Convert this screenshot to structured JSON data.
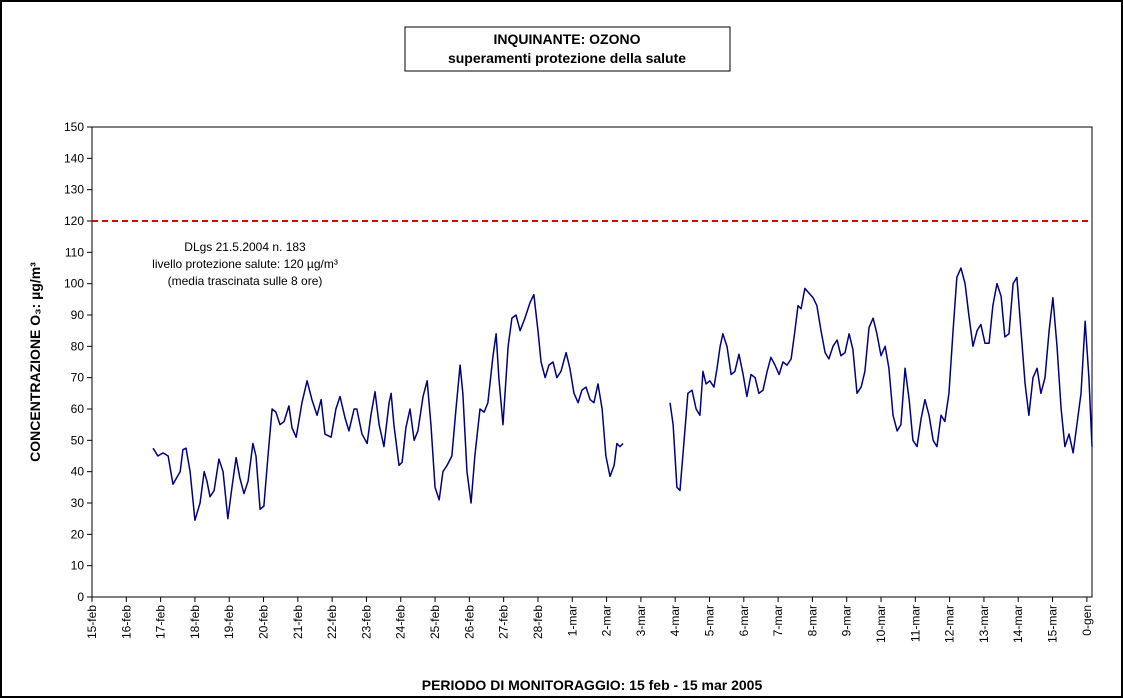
{
  "chart_data": {
    "type": "line",
    "title": "INQUINANTE: OZONO",
    "subtitle": "superamenti protezione della salute",
    "xlabel": "PERIODO DI MONITORAGGIO: 15 feb - 15 mar 2005",
    "ylabel": "CONCENTRAZIONE O₃: µg/m³",
    "color": "#000080",
    "threshold": {
      "value": 120,
      "color": "#e00000",
      "annotation": [
        "DLgs 21.5.2004 n. 183",
        "livello protezione salute: 120 µg/m³",
        "(media trascinata sulle 8 ore)"
      ]
    },
    "xlim": [
      0,
      29.15
    ],
    "xticks": [
      {
        "value": 0,
        "label": "15-feb"
      },
      {
        "value": 1,
        "label": "16-feb"
      },
      {
        "value": 2,
        "label": "17-feb"
      },
      {
        "value": 3,
        "label": "18-feb"
      },
      {
        "value": 4,
        "label": "19-feb"
      },
      {
        "value": 5,
        "label": "20-feb"
      },
      {
        "value": 6,
        "label": "21-feb"
      },
      {
        "value": 7,
        "label": "22-feb"
      },
      {
        "value": 8,
        "label": "23-feb"
      },
      {
        "value": 9,
        "label": "24-feb"
      },
      {
        "value": 10,
        "label": "25-feb"
      },
      {
        "value": 11,
        "label": "26-feb"
      },
      {
        "value": 12,
        "label": "27-feb"
      },
      {
        "value": 13,
        "label": "28-feb"
      },
      {
        "value": 14,
        "label": "1-mar"
      },
      {
        "value": 15,
        "label": "2-mar"
      },
      {
        "value": 16,
        "label": "3-mar"
      },
      {
        "value": 17,
        "label": "4-mar"
      },
      {
        "value": 18,
        "label": "5-mar"
      },
      {
        "value": 19,
        "label": "6-mar"
      },
      {
        "value": 20,
        "label": "7-mar"
      },
      {
        "value": 21,
        "label": "8-mar"
      },
      {
        "value": 22,
        "label": "9-mar"
      },
      {
        "value": 23,
        "label": "10-mar"
      },
      {
        "value": 24,
        "label": "11-mar"
      },
      {
        "value": 25,
        "label": "12-mar"
      },
      {
        "value": 26,
        "label": "13-mar"
      },
      {
        "value": 27,
        "label": "14-mar"
      },
      {
        "value": 28,
        "label": "15-mar"
      },
      {
        "value": 29,
        "label": "0-gen"
      }
    ],
    "ylim": [
      0,
      150
    ],
    "yticks": [
      0,
      10,
      20,
      30,
      40,
      50,
      60,
      70,
      80,
      90,
      100,
      110,
      120,
      130,
      140,
      150
    ],
    "x": [
      1.78,
      1.92,
      2.07,
      2.22,
      2.36,
      2.57,
      2.65,
      2.74,
      2.86,
      3.0,
      3.15,
      3.27,
      3.35,
      3.44,
      3.56,
      3.7,
      3.82,
      3.96,
      4.08,
      4.2,
      4.31,
      4.43,
      4.55,
      4.69,
      4.78,
      4.9,
      5.01,
      5.13,
      5.25,
      5.36,
      5.48,
      5.6,
      5.74,
      5.83,
      5.95,
      6.12,
      6.27,
      6.41,
      6.56,
      6.68,
      6.79,
      6.97,
      7.11,
      7.23,
      7.38,
      7.49,
      7.64,
      7.72,
      7.87,
      8.02,
      8.13,
      8.25,
      8.37,
      8.51,
      8.66,
      8.72,
      8.8,
      8.95,
      9.04,
      9.15,
      9.27,
      9.39,
      9.5,
      9.65,
      9.77,
      9.88,
      10.0,
      10.12,
      10.23,
      10.35,
      10.49,
      10.61,
      10.73,
      10.81,
      10.93,
      11.05,
      11.16,
      11.31,
      11.43,
      11.54,
      11.69,
      11.78,
      11.86,
      11.98,
      12.13,
      12.24,
      12.36,
      12.48,
      12.62,
      12.77,
      12.88,
      13.0,
      13.09,
      13.21,
      13.32,
      13.44,
      13.55,
      13.67,
      13.82,
      13.93,
      14.05,
      14.17,
      14.28,
      14.4,
      14.52,
      14.63,
      14.75,
      14.87,
      14.98,
      15.1,
      15.22,
      15.3,
      15.39,
      15.48,
      16.2,
      16.85,
      16.94,
      17.05,
      17.14,
      17.26,
      17.37,
      17.49,
      17.61,
      17.72,
      17.81,
      17.9,
      18.01,
      18.13,
      18.22,
      18.31,
      18.39,
      18.51,
      18.63,
      18.74,
      18.86,
      18.98,
      19.09,
      19.21,
      19.33,
      19.44,
      19.56,
      19.68,
      19.79,
      19.91,
      20.03,
      20.14,
      20.26,
      20.38,
      20.49,
      20.58,
      20.67,
      20.78,
      20.9,
      21.02,
      21.13,
      21.25,
      21.37,
      21.48,
      21.6,
      21.72,
      21.83,
      21.95,
      22.07,
      22.18,
      22.3,
      22.42,
      22.53,
      22.65,
      22.77,
      22.88,
      23.0,
      23.12,
      23.23,
      23.35,
      23.47,
      23.58,
      23.7,
      23.82,
      23.93,
      24.05,
      24.17,
      24.28,
      24.4,
      24.52,
      24.63,
      24.75,
      24.86,
      24.98,
      25.1,
      25.21,
      25.33,
      25.45,
      25.56,
      25.68,
      25.8,
      25.91,
      26.03,
      26.15,
      26.26,
      26.38,
      26.5,
      26.61,
      26.73,
      26.85,
      26.96,
      27.08,
      27.2,
      27.31,
      27.43,
      27.55,
      27.66,
      27.78,
      27.9,
      28.01,
      28.13,
      28.25,
      28.36,
      28.48,
      28.6,
      28.71,
      28.83,
      28.95,
      29.06,
      29.15
    ],
    "values": [
      47.5,
      45,
      46,
      45,
      36,
      40,
      47,
      47.5,
      40,
      24.5,
      30,
      40,
      37,
      32,
      34,
      44,
      40,
      25,
      35,
      44.5,
      38,
      33,
      37,
      49,
      45,
      28,
      29,
      45,
      60,
      59,
      55,
      56,
      61,
      54,
      51,
      62,
      69,
      63,
      58,
      63,
      52,
      51,
      60,
      64,
      57,
      53,
      60,
      60,
      52,
      49,
      58,
      65.5,
      55,
      48,
      62,
      65,
      55,
      42,
      43,
      54,
      60,
      50,
      53,
      64,
      69,
      55,
      35,
      31,
      40,
      42,
      45,
      60,
      74,
      65,
      40,
      30,
      45,
      60,
      59,
      62,
      77,
      84,
      70,
      55,
      80,
      89,
      90,
      85,
      89,
      94,
      96.5,
      85,
      75,
      70,
      74,
      75,
      70,
      72,
      78,
      73,
      65,
      62,
      66,
      67,
      63,
      62,
      68,
      60,
      45,
      38.5,
      42,
      49,
      48,
      49,
      null,
      62,
      55,
      35,
      34,
      50,
      65,
      66,
      60,
      58,
      72,
      68,
      69,
      67,
      73,
      80,
      84,
      80,
      71,
      72,
      77.5,
      71,
      64,
      71,
      70,
      65,
      66,
      72,
      76.5,
      74,
      71,
      75,
      74,
      76,
      85,
      93,
      92,
      98.5,
      97,
      95.5,
      93,
      85,
      78,
      76,
      80,
      82,
      77,
      78,
      84,
      79,
      65,
      67,
      72,
      86,
      89,
      84,
      77,
      80,
      73,
      58,
      53,
      55,
      73,
      63,
      50,
      48,
      57,
      63,
      58,
      50,
      48,
      58,
      56,
      65,
      85,
      102,
      105,
      100,
      90,
      80,
      85,
      87,
      81,
      81,
      93,
      100,
      96,
      83,
      84,
      100,
      102,
      85,
      68,
      58,
      70,
      73,
      65,
      70,
      85,
      95.5,
      80,
      60,
      48,
      52,
      46,
      55,
      65,
      88,
      70,
      48
    ]
  }
}
